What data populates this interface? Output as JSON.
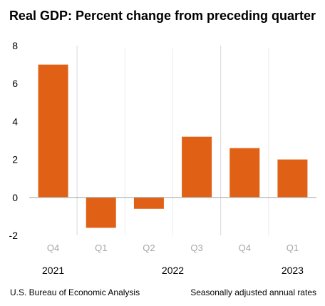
{
  "chart_data": {
    "type": "bar",
    "title": "Real GDP:  Percent change from preceding quarter",
    "categories": [
      "Q4",
      "Q1",
      "Q2",
      "Q3",
      "Q4",
      "Q1"
    ],
    "values": [
      7.0,
      -1.6,
      -0.6,
      3.2,
      2.6,
      2.0
    ],
    "year_labels": [
      "2021",
      "2022",
      "2023"
    ],
    "yticks": [
      "-2",
      "0",
      "2",
      "4",
      "6",
      "8"
    ],
    "ylim": [
      -2,
      8
    ],
    "xlabel": "",
    "ylabel": "",
    "grid": false,
    "bar_color": "#e06016",
    "source": "U.S. Bureau of Economic Analysis",
    "note": "Seasonally adjusted annual rates"
  }
}
